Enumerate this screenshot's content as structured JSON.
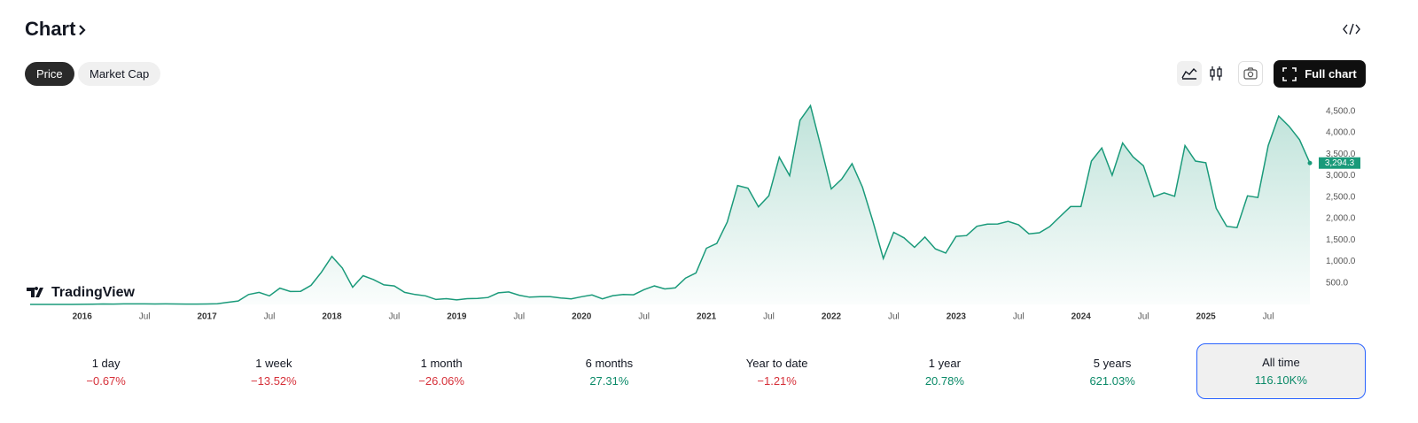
{
  "header": {
    "title": "Chart",
    "tabs": [
      "Price",
      "Market Cap"
    ],
    "selected_tab": 0,
    "full_chart": "Full chart"
  },
  "chart_data": {
    "type": "area",
    "color": "#1a9a7a",
    "brand": "TradingView",
    "x": [
      "2015-08",
      "2015-09",
      "2015-10",
      "2015-11",
      "2015-12",
      "2016-01",
      "2016-02",
      "2016-03",
      "2016-04",
      "2016-05",
      "2016-06",
      "2016-07",
      "2016-08",
      "2016-09",
      "2016-10",
      "2016-11",
      "2016-12",
      "2017-01",
      "2017-02",
      "2017-03",
      "2017-04",
      "2017-05",
      "2017-06",
      "2017-07",
      "2017-08",
      "2017-09",
      "2017-10",
      "2017-11",
      "2017-12",
      "2018-01",
      "2018-02",
      "2018-03",
      "2018-04",
      "2018-05",
      "2018-06",
      "2018-07",
      "2018-08",
      "2018-09",
      "2018-10",
      "2018-11",
      "2018-12",
      "2019-01",
      "2019-02",
      "2019-03",
      "2019-04",
      "2019-05",
      "2019-06",
      "2019-07",
      "2019-08",
      "2019-09",
      "2019-10",
      "2019-11",
      "2019-12",
      "2020-01",
      "2020-02",
      "2020-03",
      "2020-04",
      "2020-05",
      "2020-06",
      "2020-07",
      "2020-08",
      "2020-09",
      "2020-10",
      "2020-11",
      "2020-12",
      "2021-01",
      "2021-02",
      "2021-03",
      "2021-04",
      "2021-05",
      "2021-06",
      "2021-07",
      "2021-08",
      "2021-09",
      "2021-10",
      "2021-11",
      "2021-12",
      "2022-01",
      "2022-02",
      "2022-03",
      "2022-04",
      "2022-05",
      "2022-06",
      "2022-07",
      "2022-08",
      "2022-09",
      "2022-10",
      "2022-11",
      "2022-12",
      "2023-01",
      "2023-02",
      "2023-03",
      "2023-04",
      "2023-05",
      "2023-06",
      "2023-07",
      "2023-08",
      "2023-09",
      "2023-10",
      "2023-11",
      "2023-12",
      "2024-01",
      "2024-02",
      "2024-03",
      "2024-04",
      "2024-05",
      "2024-06",
      "2024-07",
      "2024-08",
      "2024-09",
      "2024-10",
      "2024-11",
      "2024-12",
      "2025-01",
      "2025-02",
      "2025-03",
      "2025-04",
      "2025-05",
      "2025-06",
      "2025-07",
      "2025-08",
      "2025-09",
      "2025-10",
      "2025-11"
    ],
    "values": [
      1,
      1,
      0.7,
      0.9,
      0.9,
      2.2,
      6,
      11,
      8.8,
      12,
      12,
      12,
      11,
      13,
      11,
      8.5,
      8,
      10.7,
      16,
      50,
      80,
      230,
      280,
      200,
      380,
      300,
      305,
      445,
      750,
      1120,
      850,
      400,
      670,
      580,
      455,
      430,
      280,
      230,
      200,
      115,
      135,
      105,
      135,
      140,
      160,
      270,
      290,
      215,
      170,
      180,
      180,
      150,
      130,
      180,
      220,
      130,
      205,
      230,
      225,
      345,
      430,
      360,
      385,
      615,
      735,
      1310,
      1420,
      1920,
      2770,
      2710,
      2275,
      2530,
      3430,
      3000,
      4290,
      4630,
      3680,
      2690,
      2920,
      3280,
      2730,
      1940,
      1070,
      1680,
      1550,
      1330,
      1570,
      1295,
      1195,
      1585,
      1605,
      1820,
      1870,
      1875,
      1935,
      1855,
      1645,
      1670,
      1815,
      2050,
      2280,
      2280,
      3340,
      3645,
      3010,
      3760,
      3440,
      3230,
      2510,
      2600,
      2520,
      3700,
      3340,
      3300,
      2240,
      1820,
      1790,
      2530,
      2490,
      3700,
      4390,
      4150,
      3840,
      3294.3
    ],
    "last_label": "3,294.3",
    "xlim": [
      "2015-08",
      "2025-11"
    ],
    "xticks": [
      {
        "value": "2016-01",
        "label": "2016"
      },
      {
        "value": "2016-07",
        "label": "Jul"
      },
      {
        "value": "2017-01",
        "label": "2017"
      },
      {
        "value": "2017-07",
        "label": "Jul"
      },
      {
        "value": "2018-01",
        "label": "2018"
      },
      {
        "value": "2018-07",
        "label": "Jul"
      },
      {
        "value": "2019-01",
        "label": "2019"
      },
      {
        "value": "2019-07",
        "label": "Jul"
      },
      {
        "value": "2020-01",
        "label": "2020"
      },
      {
        "value": "2020-07",
        "label": "Jul"
      },
      {
        "value": "2021-01",
        "label": "2021"
      },
      {
        "value": "2021-07",
        "label": "Jul"
      },
      {
        "value": "2022-01",
        "label": "2022"
      },
      {
        "value": "2022-07",
        "label": "Jul"
      },
      {
        "value": "2023-01",
        "label": "2023"
      },
      {
        "value": "2023-07",
        "label": "Jul"
      },
      {
        "value": "2024-01",
        "label": "2024"
      },
      {
        "value": "2024-07",
        "label": "Jul"
      },
      {
        "value": "2025-01",
        "label": "2025"
      },
      {
        "value": "2025-07",
        "label": "Jul"
      }
    ],
    "ylim": [
      0,
      4700
    ],
    "yticks": [
      {
        "value": 500,
        "label": "500.0"
      },
      {
        "value": 1000,
        "label": "1,000.0"
      },
      {
        "value": 1500,
        "label": "1,500.0"
      },
      {
        "value": 2000,
        "label": "2,000.0"
      },
      {
        "value": 2500,
        "label": "2,500.0"
      },
      {
        "value": 3000,
        "label": "3,000.0"
      },
      {
        "value": 3500,
        "label": "3,500.0"
      },
      {
        "value": 4000,
        "label": "4,000.0"
      },
      {
        "value": 4500,
        "label": "4,500.0"
      }
    ]
  },
  "periods": {
    "selected": 7,
    "items": [
      {
        "label": "1 day",
        "change": "−0.67%"
      },
      {
        "label": "1 week",
        "change": "−13.52%"
      },
      {
        "label": "1 month",
        "change": "−26.06%"
      },
      {
        "label": "6 months",
        "change": "27.31%"
      },
      {
        "label": "Year to date",
        "change": "−1.21%"
      },
      {
        "label": "1 year",
        "change": "20.78%"
      },
      {
        "label": "5 years",
        "change": "621.03%"
      },
      {
        "label": "All time",
        "change": "116.10K%"
      }
    ]
  }
}
